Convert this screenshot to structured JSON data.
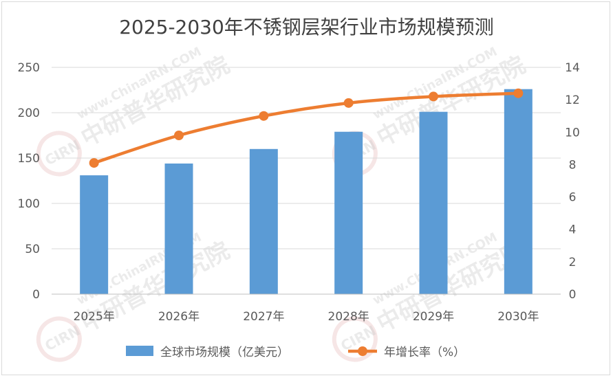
{
  "chart_data": {
    "type": "bar",
    "title": "2025-2030年不锈钢层架行业市场规模预测",
    "categories": [
      "2025年",
      "2026年",
      "2027年",
      "2028年",
      "2029年",
      "2030年"
    ],
    "series": [
      {
        "name": "全球市场规模（亿美元）",
        "type": "bar",
        "axis": "left",
        "color": "#5b9bd5",
        "values": [
          131,
          144,
          160,
          179,
          201,
          226
        ]
      },
      {
        "name": "年增长率（%）",
        "type": "line",
        "axis": "right",
        "color": "#ed7d31",
        "values": [
          8.1,
          9.8,
          11.0,
          11.8,
          12.2,
          12.4
        ]
      }
    ],
    "y_left": {
      "min": 0,
      "max": 250,
      "ticks": [
        0,
        50,
        100,
        150,
        200,
        250
      ]
    },
    "y_right": {
      "min": 0,
      "max": 14,
      "ticks": [
        0,
        2,
        4,
        6,
        8,
        10,
        12,
        14
      ]
    },
    "grid": true,
    "legend": "bottom"
  },
  "watermark": {
    "logo": "CIRN",
    "cn": "中研普华研究院",
    "en": "www.ChinaIRN.COM"
  }
}
